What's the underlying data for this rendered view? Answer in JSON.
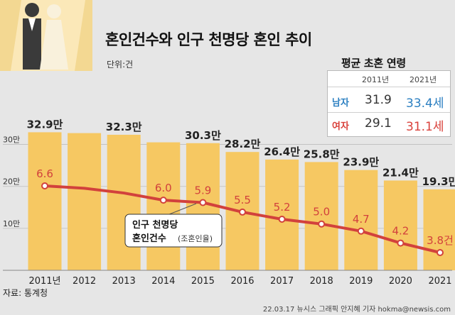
{
  "title": "혼인건수와 인구 천명당 혼인 추이",
  "unit_label": "단위:건",
  "source": "자료: 통계청",
  "credit": "22.03.17 뉴시스 그래픽 안지혜 기자 hokma@newsis.com",
  "inset": {
    "title": "평균 초혼 연령",
    "col_2011": "2011년",
    "col_2021": "2021년",
    "rows": [
      {
        "label": "남자",
        "v2011": "31.9",
        "v2021": "33.4세"
      },
      {
        "label": "여자",
        "v2011": "29.1",
        "v2021": "31.1세"
      }
    ],
    "colors": {
      "male": "#2b7fc1",
      "female": "#d9413b",
      "male_2021": "#2b7fc1",
      "female_2021": "#d9413b"
    }
  },
  "chart_data": {
    "type": "bar",
    "categories": [
      "2011년",
      "2012",
      "2013",
      "2014",
      "2015",
      "2016",
      "2017",
      "2018",
      "2019",
      "2020",
      "2021"
    ],
    "y_ticks": [
      "10만",
      "20만",
      "30만"
    ],
    "bars": {
      "values": [
        32.9,
        32.7,
        32.3,
        30.5,
        30.3,
        28.2,
        26.4,
        25.8,
        23.9,
        21.4,
        19.3
      ],
      "labels": [
        "32.9만",
        "",
        "32.3만",
        "",
        "30.3만",
        "28.2만",
        "26.4만",
        "25.8만",
        "23.9만",
        "21.4만",
        "19.3만"
      ],
      "color": "#f6c862"
    },
    "line": {
      "name": "인구 천명당 혼인건수(조혼인율)",
      "legend_main": "인구 천명당",
      "legend_sub1": "혼인건수",
      "legend_sub2": "(조혼인율)",
      "values": [
        6.6,
        6.5,
        6.3,
        6.0,
        5.9,
        5.5,
        5.2,
        5.0,
        4.7,
        4.2,
        3.8
      ],
      "labels": [
        "6.6",
        "",
        "",
        "6.0",
        "5.9",
        "5.5",
        "5.2",
        "5.0",
        "4.7",
        "4.2",
        "3.8건"
      ],
      "color": "#d2413c"
    },
    "ylim_bars": [
      0,
      35
    ]
  }
}
